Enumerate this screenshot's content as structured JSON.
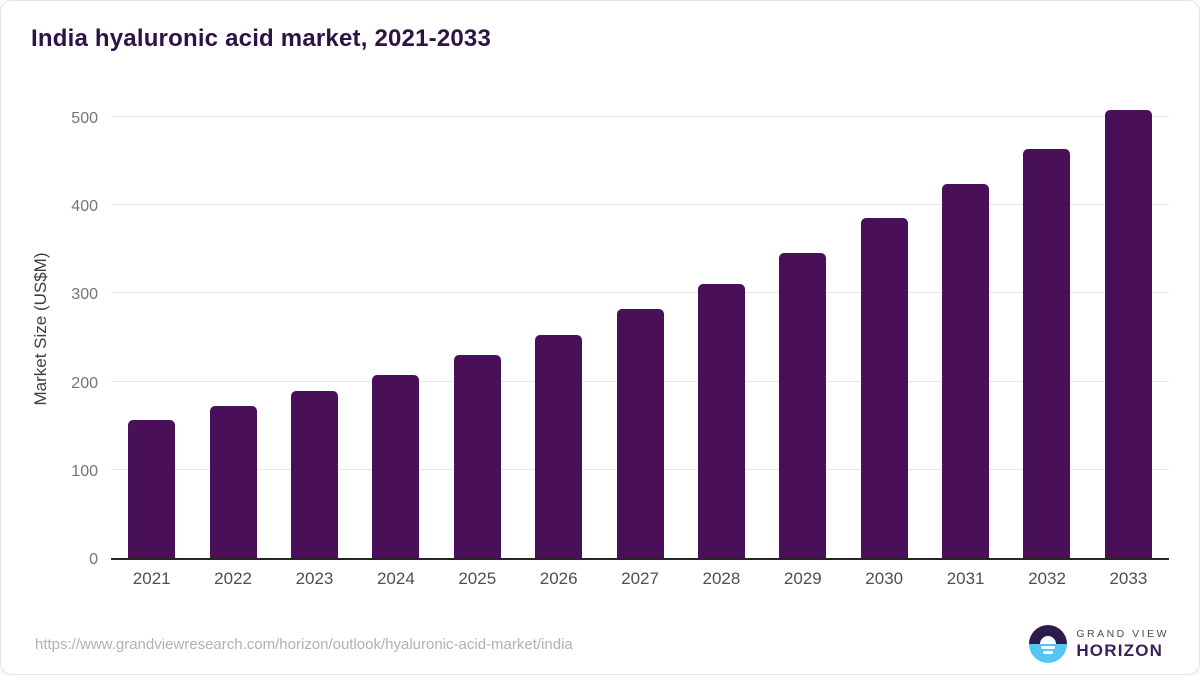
{
  "chart_data": {
    "type": "bar",
    "title": "India hyaluronic acid market, 2021-2033",
    "categories": [
      "2021",
      "2022",
      "2023",
      "2024",
      "2025",
      "2026",
      "2027",
      "2028",
      "2029",
      "2030",
      "2031",
      "2032",
      "2033"
    ],
    "values": [
      157,
      172,
      189,
      208,
      230,
      253,
      282,
      311,
      346,
      385,
      424,
      464,
      508
    ],
    "xlabel": "",
    "ylabel": "Market Size (US$M)",
    "yticks": [
      0,
      100,
      200,
      300,
      400,
      500
    ],
    "ylim": [
      0,
      525
    ],
    "grid": true,
    "legend": false,
    "bar_color": "#4a0f59"
  },
  "footer": {
    "source_url": "https://www.grandviewresearch.com/horizon/outlook/hyaluronic-acid-market/india",
    "logo": {
      "line1": "GRAND VIEW",
      "line2": "HORIZON",
      "mark": "horizon-sunrise-icon"
    }
  },
  "colors": {
    "bar": "#4a0f59",
    "title": "#2e1245",
    "axis_line": "#262626",
    "gridline": "#e7e7e7",
    "y_tick_text": "#757575",
    "x_tick_text": "#4f4f4f",
    "url_text": "#b3b0b0",
    "logo_dark": "#2d1b4e",
    "logo_blue": "#56c5f2"
  }
}
